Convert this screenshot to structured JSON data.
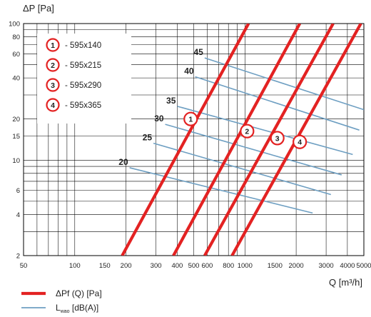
{
  "chart_data": {
    "type": "line",
    "xlabel": "Q [m³/h]",
    "ylabel": "ΔP [Pa]",
    "x_scale": "log",
    "y_scale": "log",
    "xlim": [
      50,
      5000
    ],
    "ylim": [
      2,
      100
    ],
    "grid": true,
    "x_ticks": [
      50,
      100,
      150,
      200,
      300,
      400,
      500,
      600,
      800,
      1000,
      1500,
      2000,
      3000,
      4000,
      5000
    ],
    "x_tick_labels": [
      "50",
      "100",
      "150",
      "200",
      "300",
      "400",
      "500",
      "600",
      "800",
      "1000",
      "1500",
      "2000",
      "3000",
      "4000",
      "5000"
    ],
    "y_ticks": [
      2,
      4,
      6,
      10,
      15,
      20,
      40,
      60,
      80,
      100
    ],
    "y_tick_labels": [
      "2",
      "4",
      "6",
      "10",
      "15",
      "20",
      "40",
      "60",
      "80",
      "100"
    ],
    "sizes": [
      {
        "num": "1",
        "label": "- 595x140"
      },
      {
        "num": "2",
        "label": "- 595x215"
      },
      {
        "num": "3",
        "label": "- 595x290"
      },
      {
        "num": "4",
        "label": "- 595x365"
      }
    ],
    "series": [
      {
        "num": "1",
        "color": "#e32222",
        "x": [
          190,
          1050
        ],
        "y": [
          2,
          100
        ],
        "marker": {
          "x": 480,
          "y": 20
        }
      },
      {
        "num": "2",
        "color": "#e32222",
        "x": [
          380,
          2100
        ],
        "y": [
          2,
          100
        ],
        "marker": {
          "x": 1030,
          "y": 16.3
        }
      },
      {
        "num": "3",
        "color": "#e32222",
        "x": [
          580,
          3300
        ],
        "y": [
          2,
          100
        ],
        "marker": {
          "x": 1550,
          "y": 14.5
        }
      },
      {
        "num": "4",
        "color": "#e32222",
        "x": [
          840,
          4800
        ],
        "y": [
          2,
          100
        ],
        "marker": {
          "x": 2100,
          "y": 13.6
        }
      }
    ],
    "noise_lines": [
      {
        "label": "20",
        "x": [
          210,
          2500
        ],
        "y": [
          8.8,
          4.1
        ]
      },
      {
        "label": "25",
        "x": [
          290,
          3200
        ],
        "y": [
          13.3,
          5.6
        ]
      },
      {
        "label": "30",
        "x": [
          340,
          3700
        ],
        "y": [
          18.3,
          7.8
        ]
      },
      {
        "label": "35",
        "x": [
          400,
          4300
        ],
        "y": [
          24.8,
          11.0
        ]
      },
      {
        "label": "40",
        "x": [
          510,
          4700
        ],
        "y": [
          40.8,
          16.6
        ]
      },
      {
        "label": "45",
        "x": [
          580,
          5000
        ],
        "y": [
          56,
          23.4
        ]
      }
    ],
    "legend": [
      {
        "label": "ΔPf (Q) [Pa]",
        "color": "#e32222"
      },
      {
        "label_main": "L",
        "label_sub": "wao",
        "label_rest": " [dB(A)]",
        "color": "#6e9fc2"
      }
    ]
  }
}
